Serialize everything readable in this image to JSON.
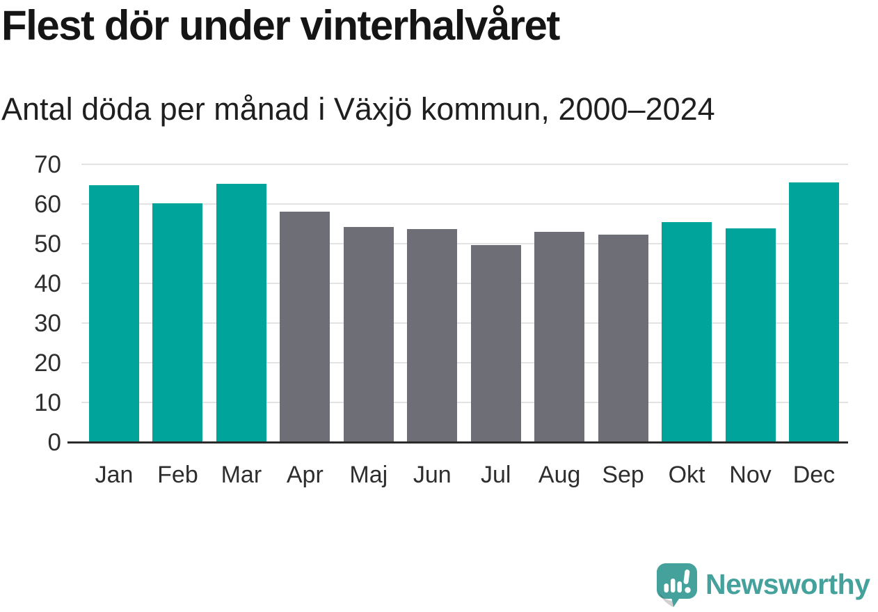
{
  "header": {
    "title": "Flest dör under vinterhalvåret",
    "subtitle": "Antal döda per månad i Växjö kommun, 2000–2024"
  },
  "chart_data": {
    "type": "bar",
    "title": "Flest dör under vinterhalvåret",
    "subtitle": "Antal döda per månad i Växjö kommun, 2000–2024",
    "categories": [
      "Jan",
      "Feb",
      "Mar",
      "Apr",
      "Maj",
      "Jun",
      "Jul",
      "Aug",
      "Sep",
      "Okt",
      "Nov",
      "Dec"
    ],
    "values": [
      64.7,
      60.2,
      65.1,
      58.0,
      54.2,
      53.6,
      49.6,
      52.9,
      52.3,
      55.5,
      53.9,
      65.4
    ],
    "bar_color_keys": [
      "highlight",
      "highlight",
      "highlight",
      "base",
      "base",
      "base",
      "base",
      "base",
      "base",
      "highlight",
      "highlight",
      "highlight"
    ],
    "highlighted_months": [
      "Jan",
      "Feb",
      "Mar",
      "Okt",
      "Nov",
      "Dec"
    ],
    "xlabel": "",
    "ylabel": "",
    "ylim": [
      0,
      70
    ],
    "yticks": [
      0,
      10,
      20,
      30,
      40,
      50,
      60,
      70
    ],
    "grid": "horizontal",
    "legend": "none",
    "colors": {
      "highlight": "#00a49a",
      "base": "#6e6e76",
      "grid": "#e3e3e3",
      "axis": "#2b2b2b",
      "tick_text": "#2e2e2e"
    }
  },
  "footer": {
    "brand": "Newsworthy",
    "logo_icon": "newsworthy-speech-bubble-bar-chart-icon",
    "brand_color": "#45a19b",
    "logo_shadow_opacity": "0.18"
  }
}
